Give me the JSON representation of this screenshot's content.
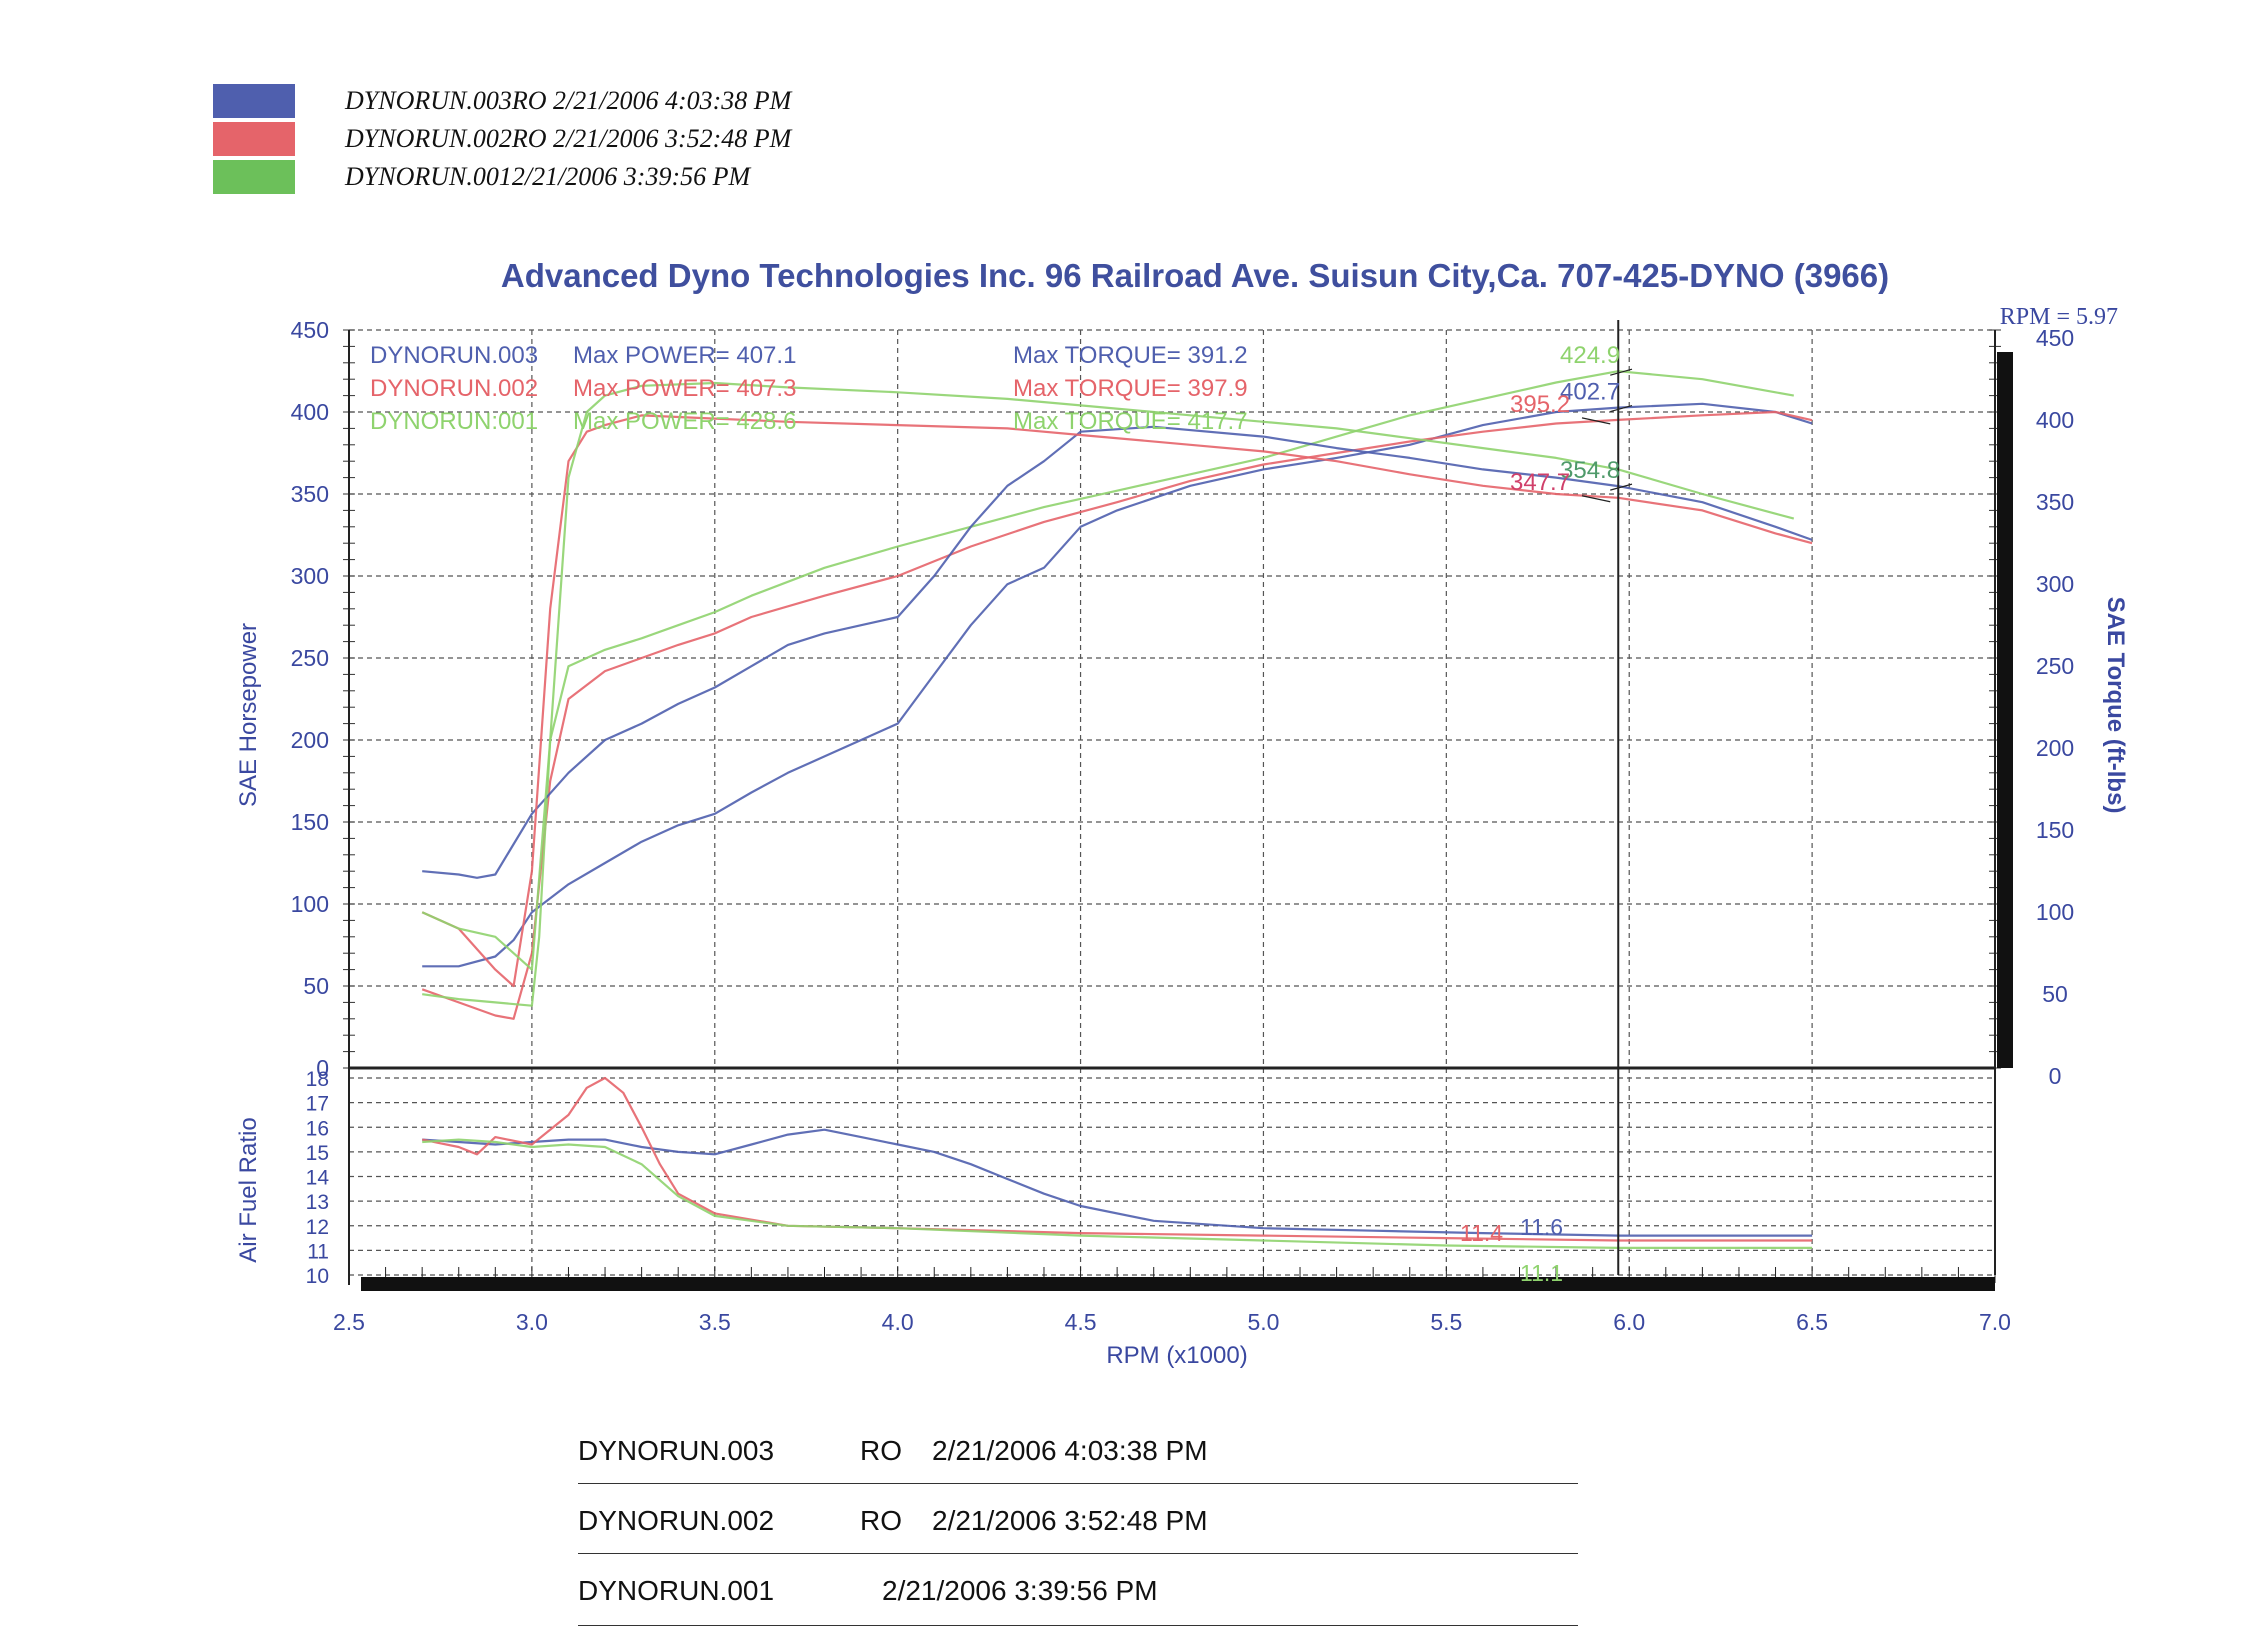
{
  "legend": {
    "entries": [
      {
        "text": "DYNORUN.003RO  2/21/2006 4:03:38 PM",
        "color": "#4f5fae"
      },
      {
        "text": "DYNORUN.002RO  2/21/2006 3:52:48 PM",
        "color": "#e5646a"
      },
      {
        "text": "DYNORUN.0012/21/2006 3:39:56 PM",
        "color": "#6cc05a"
      }
    ]
  },
  "footer": {
    "rows": [
      {
        "run": "DYNORUN.003",
        "code": "RO",
        "date": "2/21/2006 4:03:38 PM"
      },
      {
        "run": "DYNORUN.002",
        "code": "RO",
        "date": "2/21/2006 3:52:48 PM"
      },
      {
        "run": "DYNORUN.001",
        "code": "",
        "date": "2/21/2006 3:39:56 PM"
      }
    ]
  },
  "colors": {
    "run003": "#4f5fae",
    "run002": "#e5646a",
    "run001": "#8fd36e",
    "run001_label": "#5cb84a",
    "title": "#3f4f9e",
    "axis_text": "#3a48a0"
  },
  "chart_data": {
    "type": "line",
    "title": "Advanced Dyno Technologies Inc. 96 Railroad Ave. Suisun City,Ca. 707-425-DYNO (3966)",
    "cursor_label": "RPM = 5.97",
    "cursor_rpm": 5.97,
    "xlabel": "RPM (x1000)",
    "ylabel_left": "SAE Horsepower",
    "ylabel_right": "SAE Torque (ft-lbs)",
    "ylabel_afr": "Air Fuel Ratio",
    "xlim": [
      2.5,
      7.0
    ],
    "x_ticks": [
      "2.5",
      "3.0",
      "3.5",
      "4.0",
      "4.5",
      "5.0",
      "5.5",
      "6.0",
      "6.5",
      "7.0"
    ],
    "ylim": [
      0,
      450
    ],
    "y_ticks_left": [
      "450",
      "400",
      "350",
      "300",
      "250",
      "200",
      "150",
      "100",
      "50",
      "0"
    ],
    "y_ticks_right": [
      "450",
      "400",
      "350",
      "300",
      "250",
      "200",
      "150",
      "100",
      "50",
      "0"
    ],
    "afr_lim": [
      10,
      18
    ],
    "afr_ticks": [
      "18",
      "17",
      "16",
      "15",
      "14",
      "13",
      "12",
      "11",
      "10"
    ],
    "grid": true,
    "max_info": [
      {
        "run": "DYNORUN.003",
        "power_label": "Max POWER=",
        "power": "407.1",
        "torque_label": "Max TORQUE=",
        "torque": "391.2",
        "color": "#4f5fae"
      },
      {
        "run": "DYNORUN.002",
        "power_label": "Max POWER=",
        "power": "407.3",
        "torque_label": "Max TORQUE=",
        "torque": "397.9",
        "color": "#e5646a"
      },
      {
        "run": "DYNORUN:001",
        "power_label": "Max POWER=",
        "power": "428.6",
        "torque_label": "Max TORQUE=",
        "torque": "417.7",
        "color": "#8fd36e"
      }
    ],
    "cursor_values": [
      {
        "text": "424.9",
        "y": 424.9,
        "color": "#8fd36e"
      },
      {
        "text": "402.7",
        "y": 402.7,
        "color": "#4f5fae"
      },
      {
        "text": "395.2",
        "y": 395.2,
        "color": "#e5646a"
      },
      {
        "text": "354.8",
        "y": 354.8,
        "color": "#4f9a6a"
      },
      {
        "text": "347.7",
        "y": 347.7,
        "color": "#d0406a"
      }
    ],
    "afr_cursor_values": [
      {
        "text": "11.4",
        "y": 11.4,
        "color": "#e5646a"
      },
      {
        "text": "11.6",
        "y": 11.6,
        "color": "#4f5fae"
      },
      {
        "text": "11.1",
        "y": 11.1,
        "color": "#8fd36e"
      }
    ],
    "series": [
      {
        "name": "DYNORUN.003",
        "kind": "power",
        "color": "#4f5fae",
        "x": [
          2.7,
          2.8,
          2.9,
          2.95,
          3.0,
          3.1,
          3.2,
          3.3,
          3.4,
          3.5,
          3.6,
          3.7,
          3.8,
          3.9,
          4.0,
          4.1,
          4.2,
          4.3,
          4.4,
          4.5,
          4.6,
          4.8,
          5.0,
          5.2,
          5.4,
          5.6,
          5.8,
          5.97,
          6.2,
          6.4,
          6.5
        ],
        "y": [
          62,
          62,
          68,
          78,
          95,
          112,
          125,
          138,
          148,
          155,
          168,
          180,
          190,
          200,
          210,
          240,
          270,
          295,
          305,
          330,
          340,
          355,
          365,
          372,
          380,
          392,
          400,
          402.7,
          405,
          400,
          393
        ]
      },
      {
        "name": "DYNORUN.002",
        "kind": "power",
        "color": "#e5646a",
        "x": [
          2.7,
          2.8,
          2.9,
          2.95,
          3.0,
          3.05,
          3.1,
          3.2,
          3.3,
          3.4,
          3.5,
          3.6,
          3.8,
          4.0,
          4.2,
          4.4,
          4.6,
          4.8,
          5.0,
          5.2,
          5.4,
          5.6,
          5.8,
          5.97,
          6.2,
          6.4,
          6.5
        ],
        "y": [
          48,
          40,
          32,
          30,
          70,
          175,
          225,
          242,
          250,
          258,
          265,
          275,
          288,
          300,
          318,
          333,
          345,
          358,
          368,
          375,
          382,
          388,
          393,
          395.2,
          398,
          400,
          395
        ]
      },
      {
        "name": "DYNORUN.001",
        "kind": "power",
        "color": "#8fd36e",
        "x": [
          2.7,
          2.8,
          2.9,
          3.0,
          3.02,
          3.05,
          3.1,
          3.2,
          3.3,
          3.4,
          3.5,
          3.6,
          3.8,
          4.0,
          4.2,
          4.4,
          4.6,
          4.8,
          5.0,
          5.2,
          5.4,
          5.6,
          5.8,
          5.97,
          6.2,
          6.4,
          6.45
        ],
        "y": [
          45,
          42,
          40,
          38,
          80,
          200,
          245,
          255,
          262,
          270,
          278,
          288,
          305,
          318,
          330,
          342,
          352,
          362,
          372,
          385,
          398,
          408,
          418,
          424.9,
          420,
          412,
          410
        ]
      },
      {
        "name": "DYNORUN.003",
        "kind": "torque",
        "color": "#4f5fae",
        "x": [
          2.7,
          2.8,
          2.85,
          2.9,
          3.0,
          3.1,
          3.2,
          3.3,
          3.4,
          3.5,
          3.6,
          3.7,
          3.8,
          3.9,
          4.0,
          4.1,
          4.2,
          4.3,
          4.4,
          4.5,
          4.7,
          5.0,
          5.2,
          5.4,
          5.6,
          5.8,
          5.97,
          6.2,
          6.4,
          6.5
        ],
        "y": [
          120,
          118,
          116,
          118,
          155,
          180,
          200,
          210,
          222,
          232,
          245,
          258,
          265,
          270,
          275,
          300,
          330,
          355,
          370,
          388,
          391,
          385,
          378,
          372,
          365,
          360,
          354.8,
          345,
          330,
          322
        ]
      },
      {
        "name": "DYNORUN.002",
        "kind": "torque",
        "color": "#e5646a",
        "x": [
          2.7,
          2.8,
          2.9,
          2.95,
          3.0,
          3.05,
          3.1,
          3.15,
          3.2,
          3.3,
          3.5,
          3.7,
          4.0,
          4.3,
          4.5,
          4.8,
          5.0,
          5.2,
          5.4,
          5.6,
          5.8,
          5.97,
          6.2,
          6.4,
          6.5
        ],
        "y": [
          95,
          85,
          60,
          50,
          120,
          280,
          370,
          388,
          392,
          397.9,
          396,
          394,
          392,
          390,
          386,
          380,
          376,
          370,
          362,
          355,
          350,
          347.7,
          340,
          326,
          320
        ]
      },
      {
        "name": "DYNORUN.001",
        "kind": "torque",
        "color": "#8fd36e",
        "x": [
          2.7,
          2.8,
          2.9,
          3.0,
          3.05,
          3.1,
          3.15,
          3.2,
          3.3,
          3.5,
          3.7,
          4.0,
          4.3,
          4.5,
          4.8,
          5.0,
          5.2,
          5.4,
          5.6,
          5.8,
          5.97,
          6.2,
          6.4,
          6.45
        ],
        "y": [
          95,
          85,
          80,
          60,
          200,
          360,
          400,
          410,
          416,
          417.7,
          415,
          412,
          408,
          404,
          398,
          394,
          390,
          384,
          378,
          372,
          365,
          350,
          338,
          335
        ]
      },
      {
        "name": "DYNORUN.003",
        "kind": "afr",
        "color": "#4f5fae",
        "x": [
          2.7,
          2.8,
          2.9,
          3.0,
          3.1,
          3.2,
          3.3,
          3.4,
          3.5,
          3.6,
          3.7,
          3.8,
          3.9,
          4.0,
          4.1,
          4.2,
          4.3,
          4.4,
          4.5,
          4.7,
          5.0,
          5.3,
          5.6,
          5.97,
          6.3,
          6.5
        ],
        "y": [
          15.5,
          15.4,
          15.3,
          15.4,
          15.5,
          15.5,
          15.2,
          15.0,
          14.9,
          15.3,
          15.7,
          15.9,
          15.6,
          15.3,
          15.0,
          14.5,
          13.9,
          13.3,
          12.8,
          12.2,
          11.9,
          11.8,
          11.7,
          11.6,
          11.6,
          11.6
        ]
      },
      {
        "name": "DYNORUN.002",
        "kind": "afr",
        "color": "#e5646a",
        "x": [
          2.7,
          2.8,
          2.85,
          2.9,
          3.0,
          3.1,
          3.15,
          3.2,
          3.25,
          3.3,
          3.35,
          3.4,
          3.5,
          3.7,
          4.0,
          4.5,
          5.0,
          5.5,
          5.97,
          6.3,
          6.5
        ],
        "y": [
          15.5,
          15.2,
          14.9,
          15.6,
          15.3,
          16.5,
          17.6,
          18.0,
          17.4,
          16.0,
          14.5,
          13.3,
          12.5,
          12.0,
          11.9,
          11.7,
          11.6,
          11.5,
          11.4,
          11.4,
          11.4
        ]
      },
      {
        "name": "DYNORUN.001",
        "kind": "afr",
        "color": "#8fd36e",
        "x": [
          2.7,
          2.8,
          2.9,
          3.0,
          3.1,
          3.2,
          3.3,
          3.4,
          3.5,
          3.7,
          4.0,
          4.5,
          5.0,
          5.5,
          5.97,
          6.3,
          6.5
        ],
        "y": [
          15.4,
          15.5,
          15.4,
          15.2,
          15.3,
          15.2,
          14.5,
          13.2,
          12.4,
          12.0,
          11.9,
          11.6,
          11.4,
          11.2,
          11.1,
          11.1,
          11.1
        ]
      }
    ]
  }
}
